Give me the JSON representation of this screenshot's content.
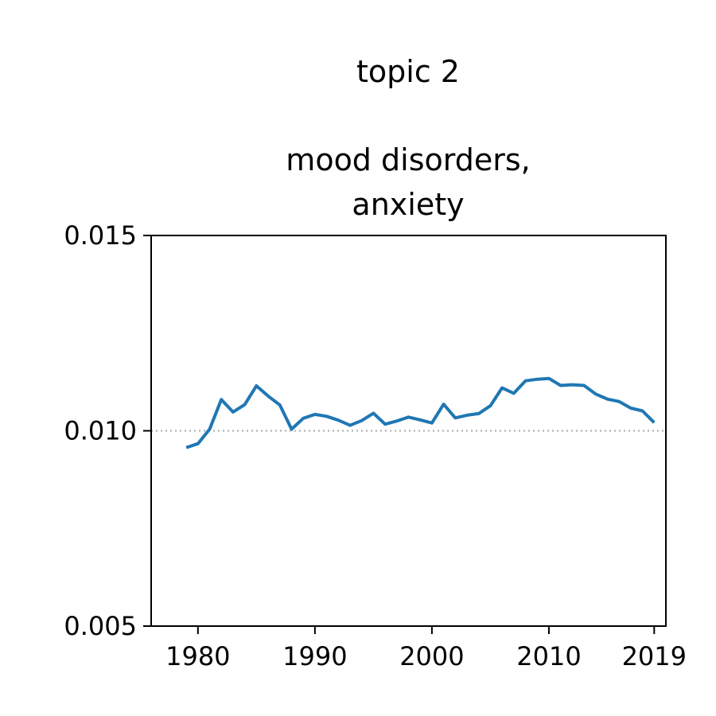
{
  "chart_data": {
    "type": "line",
    "title_lines": [
      "topic 2",
      "mood disorders,",
      "anxiety"
    ],
    "xlabel": "",
    "ylabel": "",
    "xlim": [
      1976,
      2020
    ],
    "ylim": [
      0.005,
      0.015
    ],
    "xticks": [
      1980,
      1990,
      2000,
      2010,
      2019
    ],
    "xtick_labels": [
      "1980",
      "1990",
      "2000",
      "2010",
      "2019"
    ],
    "yticks": [
      0.005,
      0.01,
      0.015
    ],
    "ytick_labels": [
      "0.005",
      "0.010",
      "0.015"
    ],
    "reference_line": {
      "y": 0.01,
      "style": "dotted",
      "color": "#aaaaaa"
    },
    "grid": false,
    "series": [
      {
        "color": "#1f77b4",
        "x": [
          1979,
          1980,
          1981,
          1982,
          1983,
          1984,
          1985,
          1986,
          1987,
          1988,
          1989,
          1990,
          1991,
          1992,
          1993,
          1994,
          1995,
          1996,
          1997,
          1998,
          1999,
          2000,
          2001,
          2002,
          2003,
          2004,
          2005,
          2006,
          2007,
          2008,
          2009,
          2010,
          2011,
          2012,
          2013,
          2014,
          2015,
          2016,
          2017,
          2018,
          2019
        ],
        "y": [
          0.00957,
          0.00967,
          0.01004,
          0.0108,
          0.01048,
          0.01067,
          0.01115,
          0.01089,
          0.01066,
          0.01004,
          0.01032,
          0.01042,
          0.01037,
          0.01027,
          0.01014,
          0.01026,
          0.01045,
          0.01017,
          0.01025,
          0.01035,
          0.01028,
          0.0102,
          0.01068,
          0.01033,
          0.0104,
          0.01044,
          0.01064,
          0.0111,
          0.01096,
          0.01128,
          0.01132,
          0.01134,
          0.01116,
          0.01118,
          0.01116,
          0.01094,
          0.01081,
          0.01075,
          0.01058,
          0.01051,
          0.01021
        ]
      }
    ]
  }
}
